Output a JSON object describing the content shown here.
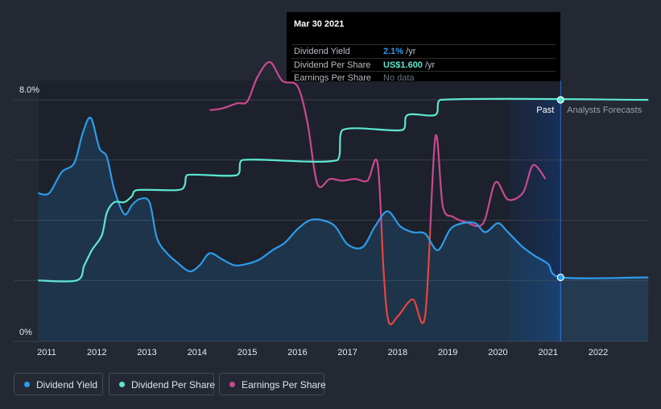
{
  "tooltip": {
    "date": "Mar 30 2021",
    "rows": [
      {
        "label": "Dividend Yield",
        "value": "2.1%",
        "suffix": " /yr",
        "color": "#2d9bea"
      },
      {
        "label": "Dividend Per Share",
        "value": "US$1.600",
        "suffix": " /yr",
        "color": "#5de6cf"
      },
      {
        "label": "Earnings Per Share",
        "value": "No data",
        "suffix": "",
        "color": "#6c7380"
      }
    ]
  },
  "labels": {
    "past": "Past",
    "forecast": "Analysts Forecasts"
  },
  "legend": [
    {
      "label": "Dividend Yield",
      "color": "#2d9bea"
    },
    {
      "label": "Dividend Per Share",
      "color": "#5de6cf"
    },
    {
      "label": "Earnings Per Share",
      "color": "#c9498f"
    }
  ],
  "chart_data": {
    "type": "line",
    "x_ticks": [
      "2011",
      "2012",
      "2013",
      "2014",
      "2015",
      "2016",
      "2017",
      "2018",
      "2019",
      "2020",
      "2021",
      "2022"
    ],
    "y_ticks": [
      "8.0%",
      "0%"
    ],
    "yield_range": [
      0,
      8
    ],
    "dps_range": [
      0,
      1.6
    ],
    "eps_range": [
      -0.2,
      1.2
    ],
    "divider_date": 2021.25,
    "grid": true,
    "series": [
      {
        "name": "Dividend Yield",
        "color": "#2d9bea",
        "unit": "%",
        "points": [
          [
            2010.83,
            4.9
          ],
          [
            2011.05,
            4.9
          ],
          [
            2011.3,
            5.6
          ],
          [
            2011.55,
            5.9
          ],
          [
            2011.72,
            6.9
          ],
          [
            2011.88,
            7.4
          ],
          [
            2012.05,
            6.4
          ],
          [
            2012.2,
            6.1
          ],
          [
            2012.35,
            5.0
          ],
          [
            2012.55,
            4.2
          ],
          [
            2012.7,
            4.5
          ],
          [
            2012.85,
            4.7
          ],
          [
            2013.05,
            4.6
          ],
          [
            2013.2,
            3.4
          ],
          [
            2013.4,
            2.9
          ],
          [
            2013.6,
            2.6
          ],
          [
            2013.85,
            2.3
          ],
          [
            2014.05,
            2.5
          ],
          [
            2014.25,
            2.9
          ],
          [
            2014.5,
            2.7
          ],
          [
            2014.75,
            2.5
          ],
          [
            2015.0,
            2.55
          ],
          [
            2015.25,
            2.7
          ],
          [
            2015.5,
            3.0
          ],
          [
            2015.75,
            3.25
          ],
          [
            2016.0,
            3.7
          ],
          [
            2016.25,
            4.0
          ],
          [
            2016.5,
            4.0
          ],
          [
            2016.75,
            3.8
          ],
          [
            2017.0,
            3.2
          ],
          [
            2017.3,
            3.1
          ],
          [
            2017.55,
            3.8
          ],
          [
            2017.8,
            4.3
          ],
          [
            2018.05,
            3.8
          ],
          [
            2018.3,
            3.6
          ],
          [
            2018.55,
            3.55
          ],
          [
            2018.8,
            3.0
          ],
          [
            2019.05,
            3.7
          ],
          [
            2019.3,
            3.9
          ],
          [
            2019.55,
            3.9
          ],
          [
            2019.75,
            3.6
          ],
          [
            2020.0,
            3.9
          ],
          [
            2020.2,
            3.6
          ],
          [
            2020.5,
            3.1
          ],
          [
            2020.75,
            2.8
          ],
          [
            2021.0,
            2.55
          ],
          [
            2021.25,
            2.1
          ],
          [
            2023.0,
            2.1
          ]
        ]
      },
      {
        "name": "Dividend Per Share",
        "color": "#5de6cf",
        "unit": "US$",
        "points": [
          [
            2010.83,
            0.4
          ],
          [
            2011.6,
            0.4
          ],
          [
            2011.75,
            0.5
          ],
          [
            2011.9,
            0.6
          ],
          [
            2012.1,
            0.7
          ],
          [
            2012.2,
            0.85
          ],
          [
            2012.35,
            0.92
          ],
          [
            2012.55,
            0.92
          ],
          [
            2012.7,
            0.96
          ],
          [
            2012.8,
            1.0
          ],
          [
            2013.6,
            1.0
          ],
          [
            2013.75,
            1.03
          ],
          [
            2013.8,
            1.1
          ],
          [
            2014.8,
            1.1
          ],
          [
            2014.9,
            1.2
          ],
          [
            2016.8,
            1.2
          ],
          [
            2016.9,
            1.4
          ],
          [
            2018.1,
            1.4
          ],
          [
            2018.2,
            1.5
          ],
          [
            2018.75,
            1.5
          ],
          [
            2018.85,
            1.6
          ],
          [
            2023.0,
            1.6
          ]
        ]
      },
      {
        "name": "Earnings Per Share",
        "color": "#c9498f",
        "unit": "US$",
        "points": [
          [
            2014.25,
            1.14
          ],
          [
            2014.5,
            1.15
          ],
          [
            2014.8,
            1.18
          ],
          [
            2015.0,
            1.19
          ],
          [
            2015.2,
            1.33
          ],
          [
            2015.45,
            1.42
          ],
          [
            2015.7,
            1.31
          ],
          [
            2016.0,
            1.28
          ],
          [
            2016.2,
            1.07
          ],
          [
            2016.4,
            0.71
          ],
          [
            2016.65,
            0.74
          ],
          [
            2016.9,
            0.73
          ],
          [
            2017.15,
            0.74
          ],
          [
            2017.4,
            0.73
          ],
          [
            2017.6,
            0.83
          ],
          [
            2017.72,
            0.2
          ],
          [
            2017.82,
            -0.09
          ],
          [
            2018.0,
            -0.06
          ],
          [
            2018.3,
            0.04
          ],
          [
            2018.55,
            -0.05
          ],
          [
            2018.75,
            0.98
          ],
          [
            2018.9,
            0.58
          ],
          [
            2019.1,
            0.52
          ],
          [
            2019.35,
            0.49
          ],
          [
            2019.7,
            0.48
          ],
          [
            2019.95,
            0.72
          ],
          [
            2020.2,
            0.62
          ],
          [
            2020.5,
            0.66
          ],
          [
            2020.7,
            0.82
          ],
          [
            2020.95,
            0.74
          ]
        ]
      }
    ]
  }
}
